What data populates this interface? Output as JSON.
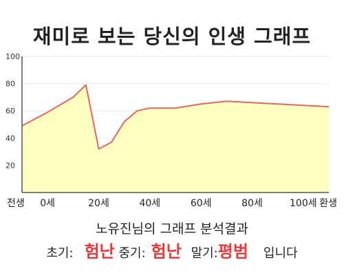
{
  "page": {
    "title": "재미로 보는 당신의 인생 그래프"
  },
  "chart_data": {
    "type": "area",
    "categories": [
      "전생",
      "0세",
      "20세",
      "40세",
      "60세",
      "80세",
      "100세",
      "환생"
    ],
    "x": [
      -10,
      0,
      10,
      15,
      20,
      25,
      30,
      35,
      40,
      45,
      50,
      60,
      70,
      80,
      90,
      100,
      110
    ],
    "values": [
      49,
      59,
      70,
      79,
      32,
      37,
      52,
      60,
      62,
      62,
      62,
      65,
      67,
      66,
      65,
      64,
      63
    ],
    "ylim": [
      0,
      100
    ],
    "yticks": [
      20,
      40,
      60,
      80,
      100
    ],
    "xlim": [
      -10,
      110
    ],
    "grid": true,
    "legend": "none",
    "colors": {
      "line": "#e06666",
      "fill": "#ffffc0",
      "grid": "#e8e8e8",
      "axis": "#555555"
    }
  },
  "summary": {
    "person": "노유진님의",
    "label": "그래프 분석결과",
    "early_label": "초기:",
    "early_value": "험난",
    "mid_label": "중기:",
    "mid_value": "험난",
    "late_label": "말기:",
    "late_value": "평범",
    "ending": "입니다"
  }
}
